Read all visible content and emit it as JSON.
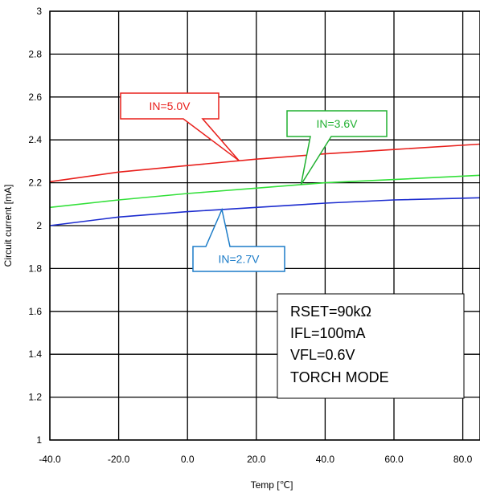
{
  "chart_data": {
    "type": "line",
    "title": "",
    "xlabel": "Temp [℃]",
    "ylabel": "Circuit current [mA]",
    "xlim": [
      -40,
      85
    ],
    "ylim": [
      1,
      3
    ],
    "xticks": [
      -40,
      -20,
      0,
      20,
      40,
      60,
      80
    ],
    "xtick_labels": [
      "-40.0",
      "-20.0",
      "0.0",
      "20.0",
      "40.0",
      "60.0",
      "80.0"
    ],
    "yticks": [
      1,
      1.2,
      1.4,
      1.6,
      1.8,
      2,
      2.2,
      2.4,
      2.6,
      2.8,
      3
    ],
    "ytick_labels": [
      "1",
      "1.2",
      "1.4",
      "1.6",
      "1.8",
      "2",
      "2.2",
      "2.4",
      "2.6",
      "2.8",
      "3"
    ],
    "grid": true,
    "series": [
      {
        "name": "IN=5.0V",
        "color": "#e8201c",
        "x": [
          -40,
          -20,
          0,
          20,
          40,
          60,
          85
        ],
        "y": [
          2.205,
          2.25,
          2.28,
          2.31,
          2.335,
          2.355,
          2.38
        ],
        "callout_at": 15
      },
      {
        "name": "IN=3.6V",
        "color": "#33e03a",
        "x": [
          -40,
          -20,
          0,
          20,
          40,
          60,
          85
        ],
        "y": [
          2.085,
          2.12,
          2.15,
          2.175,
          2.2,
          2.215,
          2.235
        ],
        "callout_at": 33
      },
      {
        "name": "IN=2.7V",
        "color": "#1c2ccf",
        "x": [
          -40,
          -20,
          0,
          20,
          40,
          60,
          85
        ],
        "y": [
          2.0,
          2.04,
          2.065,
          2.085,
          2.105,
          2.12,
          2.13
        ],
        "callout_at": 10
      }
    ],
    "annotation_lines": [
      "RSET=90kΩ",
      "IFL=100mA",
      "VFL=0.6V",
      "TORCH MODE"
    ]
  }
}
